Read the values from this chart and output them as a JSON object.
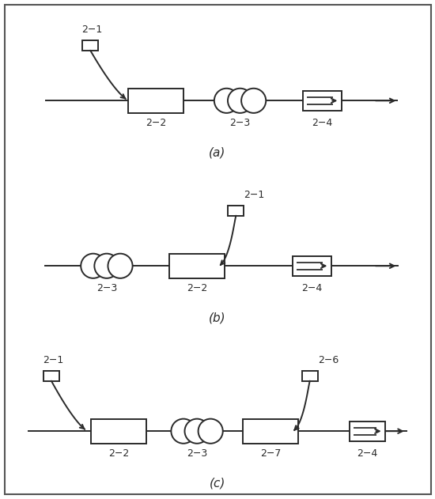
{
  "line_color": "#2a2a2a",
  "title_a": "(a)",
  "title_b": "(b)",
  "title_c": "(c)",
  "label_dash": "−"
}
